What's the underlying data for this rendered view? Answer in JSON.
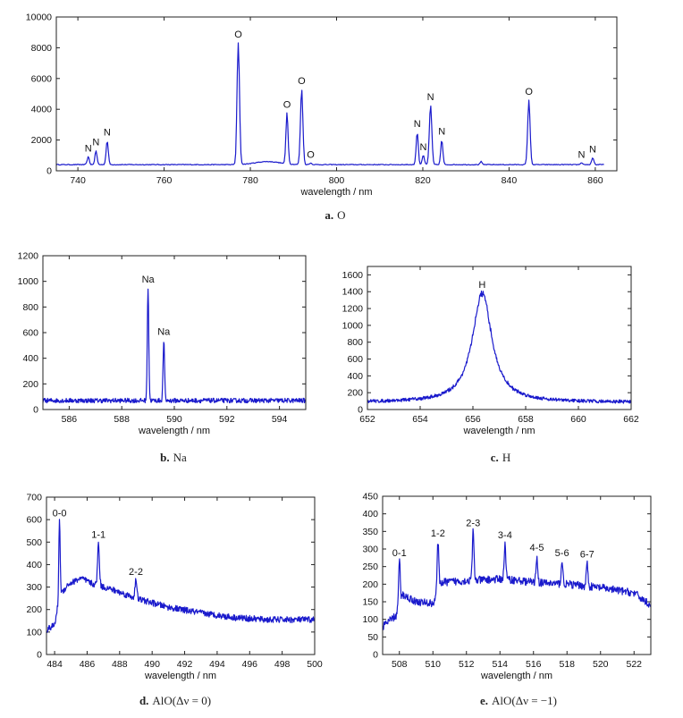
{
  "chart_data": [
    {
      "id": "a",
      "type": "line",
      "xlabel": "wavelength / nm",
      "ylabel": "",
      "xlim": [
        735,
        865
      ],
      "ylim": [
        0,
        10000
      ],
      "xticks": [
        740,
        760,
        780,
        800,
        820,
        840,
        860
      ],
      "yticks": [
        0,
        2000,
        4000,
        6000,
        8000,
        10000
      ],
      "caption": {
        "letter": "a.",
        "text": "O"
      },
      "baseline": 400,
      "noise": 25,
      "x_range": [
        735,
        862
      ],
      "bumps": [
        {
          "x": 784,
          "h": 200,
          "w": 4
        }
      ],
      "peaks": [
        {
          "x": 742.4,
          "y": 900,
          "w": 0.35,
          "label": "N"
        },
        {
          "x": 744.2,
          "y": 1300,
          "w": 0.35,
          "label": "N"
        },
        {
          "x": 746.8,
          "y": 1950,
          "w": 0.35,
          "label": "N"
        },
        {
          "x": 777.2,
          "y": 8300,
          "w": 0.4,
          "label": "O"
        },
        {
          "x": 788.5,
          "y": 3750,
          "w": 0.35,
          "label": "O"
        },
        {
          "x": 791.9,
          "y": 5300,
          "w": 0.4,
          "label": "O"
        },
        {
          "x": 794.0,
          "y": 500,
          "w": 0.4,
          "label": "O"
        },
        {
          "x": 818.7,
          "y": 2500,
          "w": 0.35,
          "label": "N"
        },
        {
          "x": 820.1,
          "y": 1000,
          "w": 0.35,
          "label": "N"
        },
        {
          "x": 821.8,
          "y": 4250,
          "w": 0.4,
          "label": "N"
        },
        {
          "x": 824.4,
          "y": 2000,
          "w": 0.35,
          "label": "N"
        },
        {
          "x": 833.5,
          "y": 600,
          "w": 0.3,
          "label": ""
        },
        {
          "x": 844.6,
          "y": 4600,
          "w": 0.4,
          "label": "O"
        },
        {
          "x": 856.8,
          "y": 500,
          "w": 0.3,
          "label": "N"
        },
        {
          "x": 859.4,
          "y": 850,
          "w": 0.35,
          "label": "N"
        }
      ]
    },
    {
      "id": "b",
      "type": "line",
      "xlabel": "wavelength / nm",
      "ylabel": "",
      "xlim": [
        585,
        595
      ],
      "ylim": [
        0,
        1200
      ],
      "xticks": [
        586,
        588,
        590,
        592,
        594
      ],
      "yticks": [
        0,
        200,
        400,
        600,
        800,
        1000,
        1200
      ],
      "caption": {
        "letter": "b.",
        "text": "Na"
      },
      "baseline": 70,
      "noise": 18,
      "x_range": [
        585,
        595
      ],
      "bumps": [],
      "peaks": [
        {
          "x": 589.0,
          "y": 950,
          "w": 0.04,
          "label": "Na"
        },
        {
          "x": 589.6,
          "y": 540,
          "w": 0.04,
          "label": "Na"
        }
      ]
    },
    {
      "id": "c",
      "type": "line",
      "xlabel": "wavelength / nm",
      "ylabel": "",
      "xlim": [
        652,
        662
      ],
      "ylim": [
        0,
        1700
      ],
      "xticks": [
        652,
        654,
        656,
        658,
        660,
        662
      ],
      "yticks": [
        0,
        200,
        400,
        600,
        800,
        1000,
        1200,
        1400,
        1600
      ],
      "caption": {
        "letter": "c.",
        "text": "H"
      },
      "baseline": 85,
      "noise": 20,
      "x_range": [
        652,
        662
      ],
      "bumps": [],
      "lorentz": {
        "x": 656.35,
        "h": 1290,
        "w": 0.45
      },
      "peaks": [
        {
          "x": 656.35,
          "y": 1380,
          "w": 0.0,
          "label": "H"
        }
      ]
    },
    {
      "id": "d",
      "type": "line",
      "xlabel": "wavelength / nm",
      "ylabel": "",
      "xlim": [
        483.5,
        500
      ],
      "ylim": [
        0,
        700
      ],
      "xticks": [
        484,
        486,
        488,
        490,
        492,
        494,
        496,
        498,
        500
      ],
      "yticks": [
        0,
        100,
        200,
        300,
        400,
        500,
        600,
        700
      ],
      "caption": {
        "letter": "d.",
        "text": "AlO(Δν = 0)"
      },
      "noise": 14,
      "x_range": [
        483.5,
        500
      ],
      "continuum": [
        [
          483.5,
          110
        ],
        [
          484.0,
          130
        ],
        [
          484.3,
          260
        ],
        [
          484.8,
          310
        ],
        [
          485.6,
          340
        ],
        [
          486.3,
          315
        ],
        [
          487.5,
          290
        ],
        [
          489,
          250
        ],
        [
          491,
          210
        ],
        [
          493,
          185
        ],
        [
          495,
          165
        ],
        [
          497,
          155
        ],
        [
          500,
          155
        ]
      ],
      "bumps": [],
      "peaks": [
        {
          "x": 484.3,
          "y": 590,
          "w": 0.06,
          "label": "0-0"
        },
        {
          "x": 486.7,
          "y": 495,
          "w": 0.08,
          "label": "1-1"
        },
        {
          "x": 489.0,
          "y": 330,
          "w": 0.08,
          "label": "2-2"
        }
      ]
    },
    {
      "id": "e",
      "type": "line",
      "xlabel": "wavelength / nm",
      "ylabel": "",
      "xlim": [
        507,
        523
      ],
      "ylim": [
        0,
        450
      ],
      "xticks": [
        508,
        510,
        512,
        514,
        516,
        518,
        520,
        522
      ],
      "yticks": [
        0,
        50,
        100,
        150,
        200,
        250,
        300,
        350,
        400,
        450
      ],
      "caption": {
        "letter": "e.",
        "text": "AlO(Δν = −1)"
      },
      "noise": 11,
      "x_range": [
        507,
        523
      ],
      "continuum": [
        [
          507,
          80
        ],
        [
          507.8,
          110
        ],
        [
          508.2,
          170
        ],
        [
          509,
          150
        ],
        [
          510,
          145
        ],
        [
          510.5,
          205
        ],
        [
          512,
          210
        ],
        [
          514.3,
          215
        ],
        [
          516,
          205
        ],
        [
          518,
          200
        ],
        [
          520,
          190
        ],
        [
          522,
          175
        ],
        [
          523,
          140
        ]
      ],
      "bumps": [],
      "peaks": [
        {
          "x": 508.0,
          "y": 265,
          "w": 0.07,
          "label": "0-1"
        },
        {
          "x": 510.3,
          "y": 320,
          "w": 0.07,
          "label": "1-2"
        },
        {
          "x": 512.4,
          "y": 350,
          "w": 0.07,
          "label": "2-3"
        },
        {
          "x": 514.3,
          "y": 315,
          "w": 0.07,
          "label": "3-4"
        },
        {
          "x": 516.2,
          "y": 280,
          "w": 0.07,
          "label": "4-5"
        },
        {
          "x": 517.7,
          "y": 265,
          "w": 0.07,
          "label": "5-6"
        },
        {
          "x": 519.2,
          "y": 260,
          "w": 0.07,
          "label": "6-7"
        }
      ]
    }
  ]
}
